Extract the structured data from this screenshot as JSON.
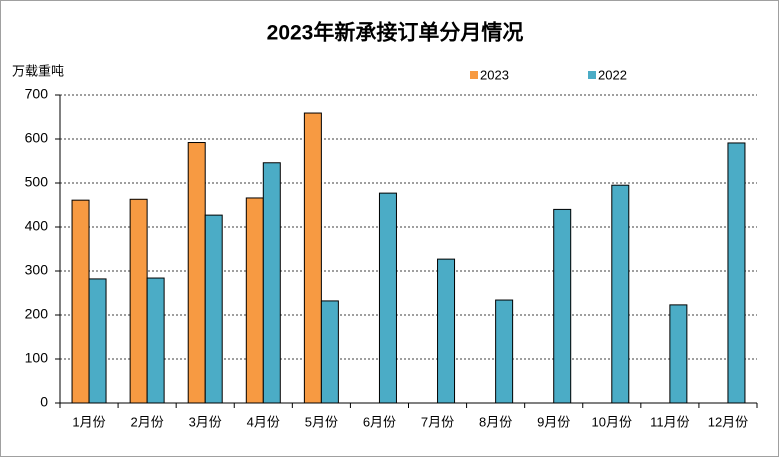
{
  "chart_data": {
    "type": "bar",
    "title": "2023年新承接订单分月情况",
    "y_label": "万载重吨",
    "categories": [
      "1月份",
      "2月份",
      "3月份",
      "4月份",
      "5月份",
      "6月份",
      "7月份",
      "8月份",
      "9月份",
      "10月份",
      "11月份",
      "12月份"
    ],
    "series": [
      {
        "name": "2023",
        "color": "#f79a42",
        "values": [
          461,
          463,
          592,
          466,
          659,
          null,
          null,
          null,
          null,
          null,
          null,
          null
        ]
      },
      {
        "name": "2022",
        "color": "#4bacc6",
        "values": [
          282,
          284,
          427,
          546,
          232,
          477,
          327,
          234,
          440,
          495,
          223,
          591
        ]
      }
    ],
    "ylim": [
      0,
      700
    ],
    "yticks": [
      0,
      100,
      200,
      300,
      400,
      500,
      600,
      700
    ],
    "grid": true
  }
}
